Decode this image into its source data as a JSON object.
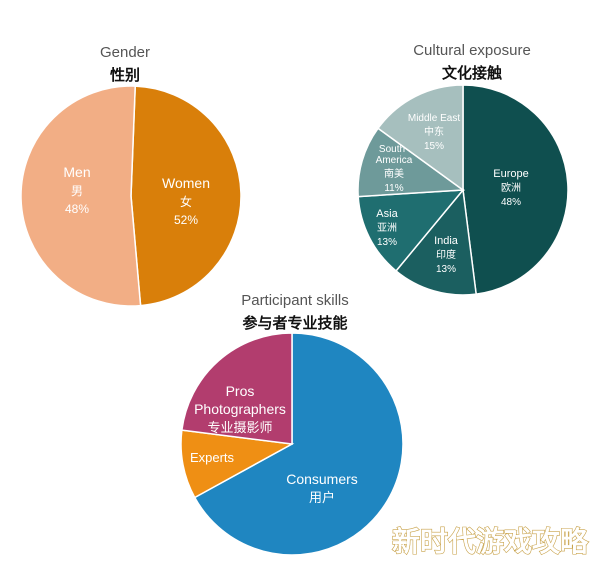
{
  "chart_data": [
    {
      "type": "pie",
      "title": "Gender",
      "subtitle": "性别",
      "slices": [
        {
          "label": "Men",
          "label_cn": "男",
          "pct_text": "48%",
          "value": 48,
          "color": "#d97f0a"
        },
        {
          "label": "Women",
          "label_cn": "女",
          "pct_text": "52%",
          "value": 52,
          "color": "#f2ae85"
        }
      ]
    },
    {
      "type": "pie",
      "title": "Cultural exposure",
      "subtitle": "文化接触",
      "slices": [
        {
          "label": "Europe",
          "label_cn": "欧洲",
          "pct_text": "48%",
          "value": 48,
          "color": "#0f4f4f"
        },
        {
          "label": "India",
          "label_cn": "印度",
          "pct_text": "13%",
          "value": 13,
          "color": "#1b5f60"
        },
        {
          "label": "Asia",
          "label_cn": "亚洲",
          "pct_text": "13%",
          "value": 13,
          "color": "#1f6e70"
        },
        {
          "label": "South America",
          "label_cn": "南美",
          "pct_text": "11%",
          "value": 11,
          "color": "#6e9a9a"
        },
        {
          "label": "Middle East",
          "label_cn": "中东",
          "pct_text": "15%",
          "value": 15,
          "color": "#a6bfbe"
        }
      ]
    },
    {
      "type": "pie",
      "title": "Participant skills",
      "subtitle": "参与者专业技能",
      "slices": [
        {
          "label": "Consumers",
          "label_cn": "用户",
          "pct_text": "",
          "value": 67,
          "color": "#1f86c1"
        },
        {
          "label": "Experts",
          "label_cn": "",
          "pct_text": "",
          "value": 10,
          "color": "#ef8f14"
        },
        {
          "label": "Pros Photographers",
          "label_cn": "专业摄影师",
          "pct_text": "",
          "value": 23,
          "color": "#b23d6e"
        }
      ]
    }
  ],
  "watermark": "新时代游戏攻略"
}
